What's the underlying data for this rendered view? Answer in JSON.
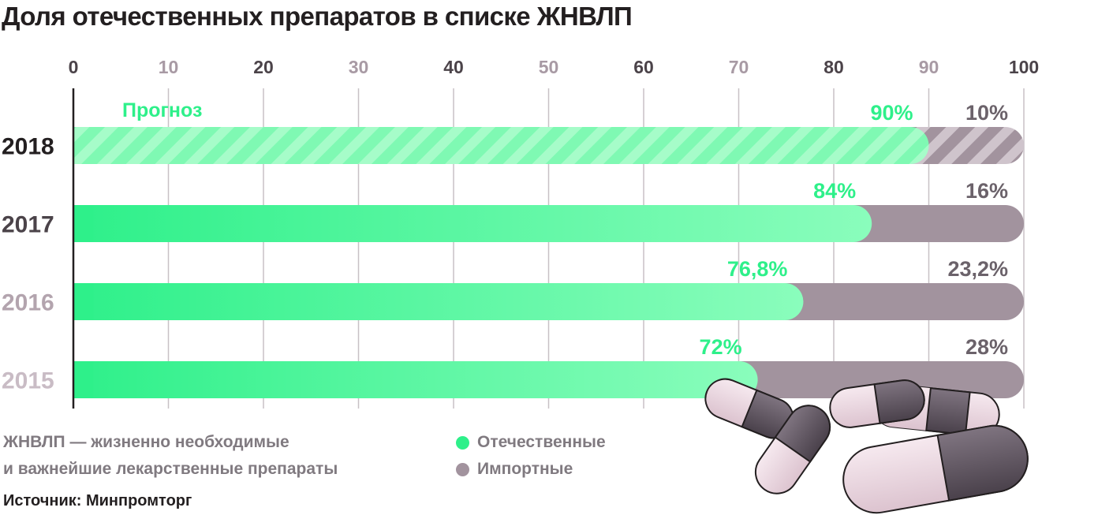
{
  "chart_data": {
    "type": "bar",
    "orientation": "horizontal",
    "stacked": true,
    "title": "Доля отечественных препаратов в списке ЖНВЛП",
    "categories": [
      "2018",
      "2017",
      "2016",
      "2015"
    ],
    "series": [
      {
        "name": "Отечественные",
        "values": [
          90,
          84,
          76.8,
          72
        ],
        "labels": [
          "90%",
          "84%",
          "76,8%",
          "72%"
        ],
        "color": "#2ef08a"
      },
      {
        "name": "Импортные",
        "values": [
          10,
          16,
          23.2,
          28
        ],
        "labels": [
          "10%",
          "16%",
          "23,2%",
          "28%"
        ],
        "color": "#a2939e"
      }
    ],
    "xlim": [
      0,
      100
    ],
    "xticks": [
      "0",
      "10",
      "20",
      "30",
      "40",
      "50",
      "60",
      "70",
      "80",
      "90",
      "100"
    ],
    "annotations": [
      "Прогноз"
    ],
    "forecast_category": "2018",
    "legend": [
      {
        "label": "Отечественные",
        "color": "#2ef08a"
      },
      {
        "label": "Импортные",
        "color": "#a2939e"
      }
    ],
    "grid": true,
    "legend_position": "bottom"
  },
  "footnote": {
    "line1": "ЖНВЛП — жизненно необходимые",
    "line2": "и важнейшие лекарственные препараты"
  },
  "source": "Источник: Минпромторг",
  "colors": {
    "domestic": "#2ef08a",
    "domestic_light": "#8afdbc",
    "imported": "#a2939e",
    "text_dark": "#231f20",
    "text_muted": "#807a80",
    "tick_light": "#a89aa4",
    "year_light": "#b3a4ae",
    "pill_light": "#eedae3",
    "pill_dark": "#5e5460"
  }
}
